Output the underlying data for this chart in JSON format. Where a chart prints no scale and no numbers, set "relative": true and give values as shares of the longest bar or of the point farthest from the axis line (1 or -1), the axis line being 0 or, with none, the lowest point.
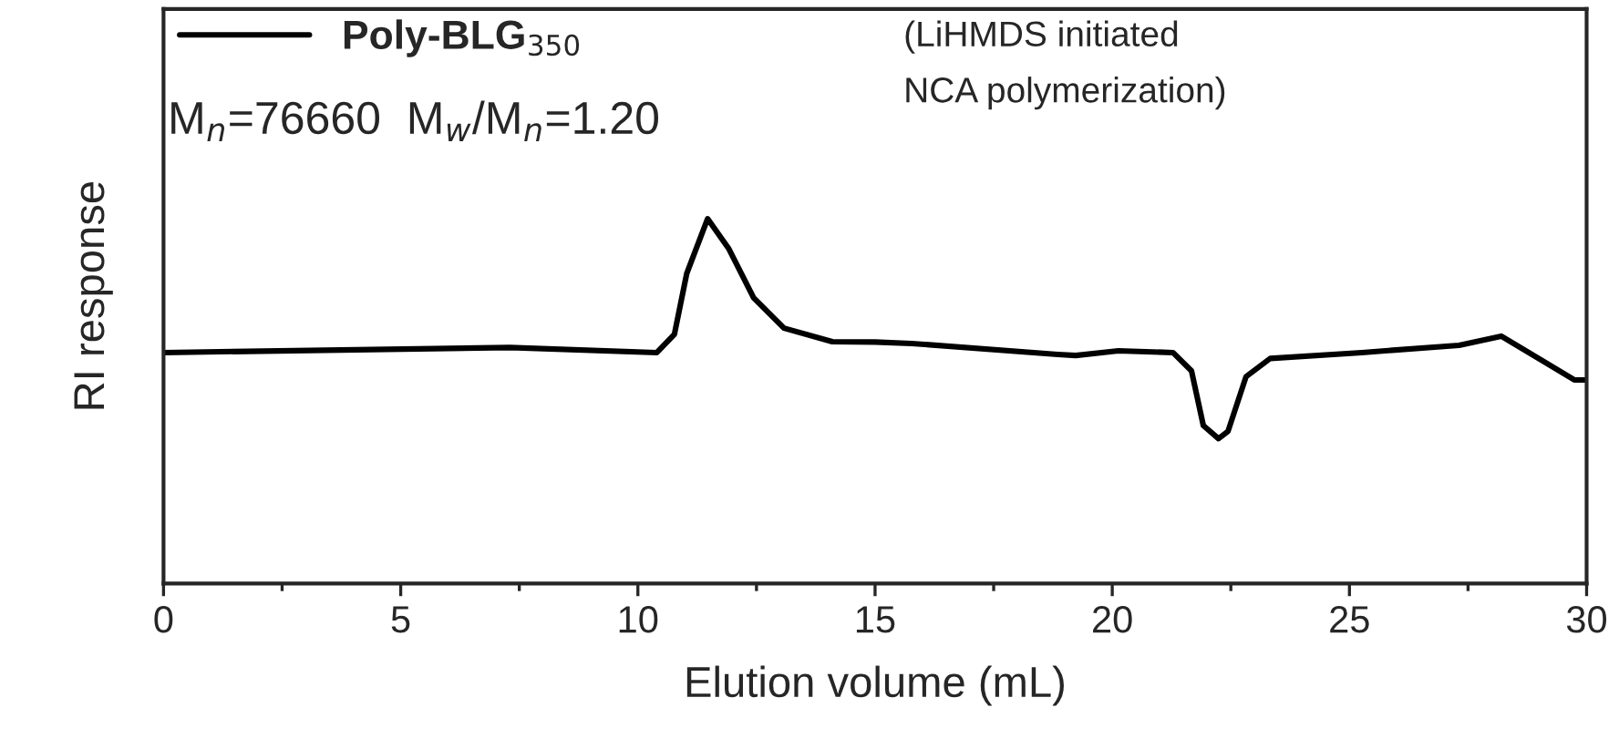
{
  "chart_data": {
    "type": "line",
    "relative": true,
    "xlabel": "Elution volume (mL)",
    "ylabel": "RI response",
    "x": [
      0,
      7.3,
      10.4,
      10.77,
      11.03,
      11.47,
      11.92,
      12.44,
      13.08,
      14.1,
      15.0,
      15.77,
      18.85,
      19.23,
      20.13,
      21.28,
      21.67,
      21.92,
      22.24,
      22.44,
      22.82,
      23.33,
      25.26,
      27.31,
      28.2,
      29.1,
      29.74,
      30
    ],
    "series": [
      {
        "name": "Poly-BLG$_{350}$",
        "color": "#000000",
        "values": [
          0.633,
          0.647,
          0.633,
          0.683,
          0.85,
          1.0,
          0.917,
          0.783,
          0.7,
          0.663,
          0.662,
          0.658,
          0.628,
          0.625,
          0.638,
          0.633,
          0.583,
          0.433,
          0.397,
          0.417,
          0.567,
          0.617,
          0.633,
          0.653,
          0.678,
          0.608,
          0.558,
          0.558
        ]
      }
    ],
    "xlim": [
      0,
      30
    ],
    "xticks": [
      0,
      5,
      10,
      15,
      20,
      25,
      30
    ],
    "annotations": [
      "M$_{n}$=76660  M$_{w}$/M$_{n}$=1.20",
      "(LiHMDS initiated\nNCA polymerization)"
    ],
    "legend": "top left",
    "grid": false,
    "line_style": "solid",
    "marker": "none"
  }
}
